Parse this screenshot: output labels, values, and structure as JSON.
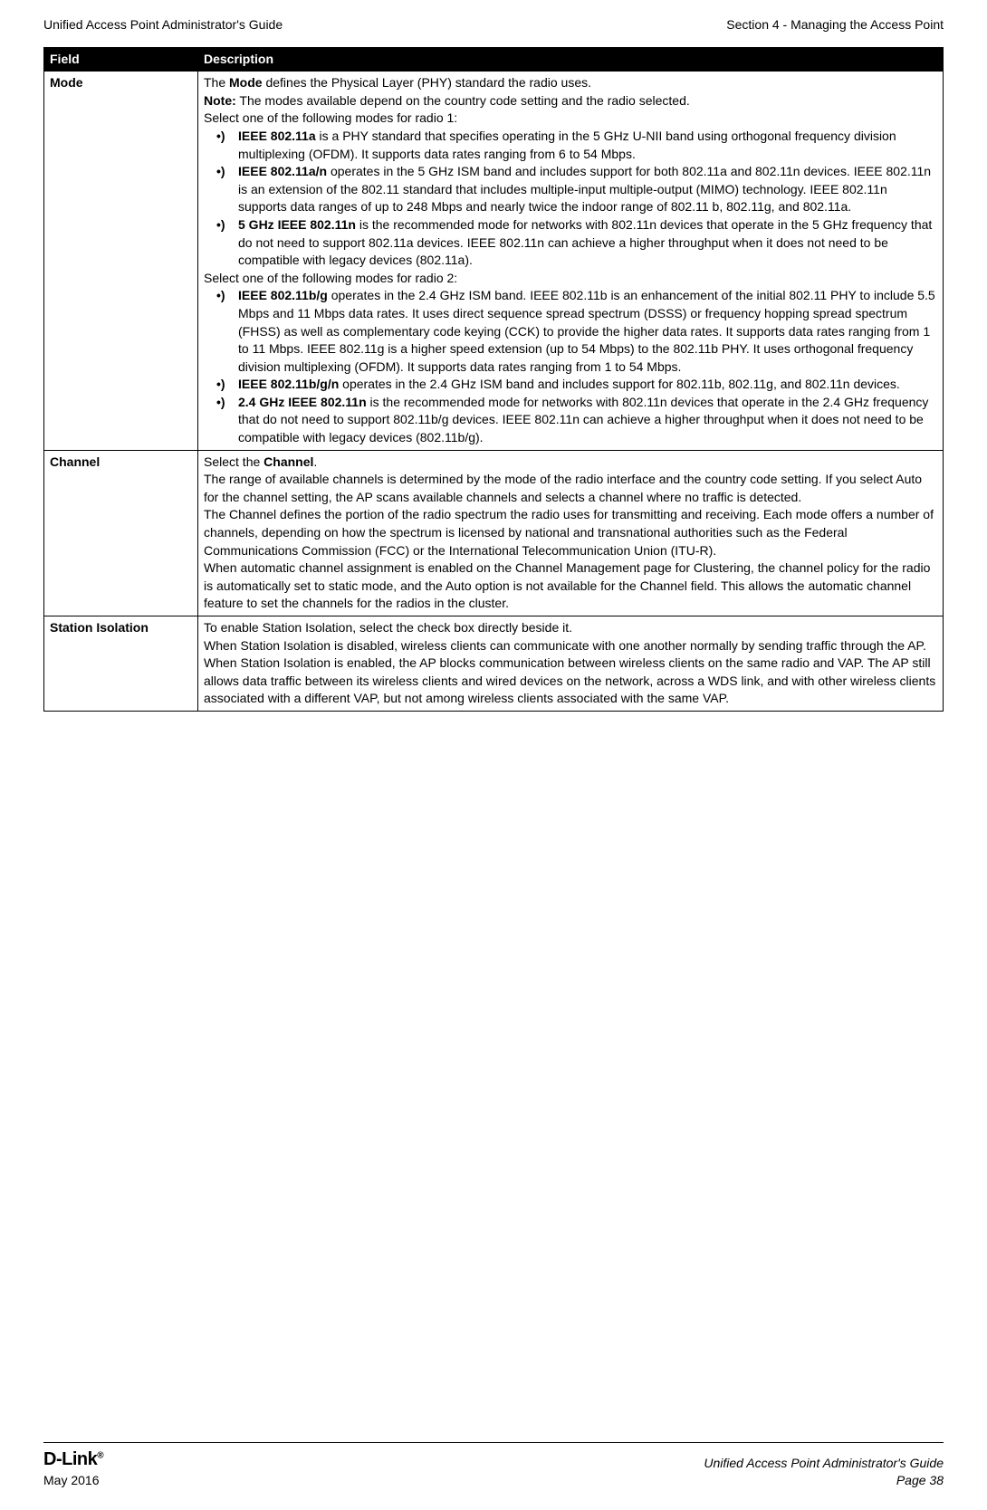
{
  "header": {
    "left": "Unified Access Point Administrator's Guide",
    "right": "Section 4 - Managing the Access Point"
  },
  "table": {
    "headers": [
      "Field",
      "Description"
    ],
    "rows": [
      {
        "field": "Mode",
        "intro1_a": "The ",
        "intro1_b": "Mode",
        "intro1_c": " defines the Physical Layer (PHY) standard the radio uses.",
        "intro2_a": "Note:",
        "intro2_b": " The modes available depend on the country code setting and the radio selected.",
        "intro3": "Select one of the following modes for radio 1:",
        "bullets1": [
          {
            "b": "IEEE 802.11a",
            "t": " is a PHY standard that specifies operating in the 5 GHz U-NII band using orthogonal frequency division multiplexing (OFDM). It supports data rates ranging from 6 to 54 Mbps."
          },
          {
            "b": "IEEE 802.11a/n",
            "t": " operates in the 5 GHz ISM band and includes support for both 802.11a and 802.11n devices. IEEE 802.11n is an extension of the 802.11 standard that includes multiple-input multiple-output (MIMO) technology. IEEE 802.11n supports data ranges of up to 248 Mbps and nearly twice the indoor range of 802.11 b, 802.11g, and 802.11a."
          },
          {
            "b": "5 GHz IEEE 802.11n",
            "t": " is the recommended mode for networks with 802.11n devices that operate in the 5 GHz frequency that do not need to support 802.11a devices. IEEE 802.11n can achieve a higher throughput when it does not need to be compatible with legacy devices (802.11a)."
          }
        ],
        "intro4": "Select one of the following modes for radio 2:",
        "bullets2": [
          {
            "b": "IEEE 802.11b/g",
            "t": " operates in the 2.4 GHz ISM band. IEEE 802.11b is an enhancement of the initial 802.11 PHY to include 5.5 Mbps and 11 Mbps data rates. It uses direct sequence spread spectrum (DSSS) or frequency hopping spread spectrum (FHSS) as well as complementary code keying (CCK) to provide the higher data rates. It supports data rates ranging from 1 to 11 Mbps. IEEE 802.11g is a higher speed extension (up to 54 Mbps) to the 802.11b PHY. It uses orthogonal frequency division multiplexing (OFDM). It supports data rates ranging from 1 to 54 Mbps."
          },
          {
            "b": "IEEE 802.11b/g/n",
            "t": " operates in the 2.4 GHz ISM band and includes support for 802.11b, 802.11g, and 802.11n devices."
          },
          {
            "b": "2.4 GHz IEEE 802.11n",
            "t": " is the recommended mode for networks with 802.11n devices that operate in the 2.4 GHz frequency that do not need to support 802.11b/g devices. IEEE 802.11n can achieve a higher throughput when it does not need to be compatible with legacy devices (802.11b/g)."
          }
        ]
      },
      {
        "field": "Channel",
        "p1_a": "Select the ",
        "p1_b": "Channel",
        "p1_c": ".",
        "p2": "The range of available channels is determined by the mode of the radio interface and the country code setting. If you select Auto for the channel setting, the AP scans available channels and selects a channel where no traffic is detected.",
        "p3": "The Channel defines the portion of the radio spectrum the radio uses for transmitting and receiving. Each mode offers a number of channels, depending on how the spectrum is licensed by national and transnational authorities such as the Federal Communications Commission (FCC) or the International Telecommunication Union (ITU-R).",
        "p4": "When automatic channel assignment is enabled on the Channel Management page for Clustering, the channel policy for the radio is automatically set to static mode, and the Auto option is not available for the Channel field. This allows the automatic channel feature to set the channels for the radios in the cluster."
      },
      {
        "field": "Station Isolation",
        "p1": "To enable Station Isolation, select the check box directly beside it.",
        "p2": "When Station Isolation is disabled, wireless clients can communicate with one another normally by sending traffic through the AP.",
        "p3": "When Station Isolation is enabled, the AP blocks communication between wireless clients on the same radio and VAP. The AP still allows data traffic between its wireless clients and wired devices on the network, across a WDS link, and with other wireless clients associated with a different VAP, but not among wireless clients associated with the same VAP."
      }
    ]
  },
  "footer": {
    "logo": "D-Link",
    "left": "May 2016",
    "right_top": "Unified Access Point Administrator's Guide",
    "right_bottom": "Page 38"
  }
}
